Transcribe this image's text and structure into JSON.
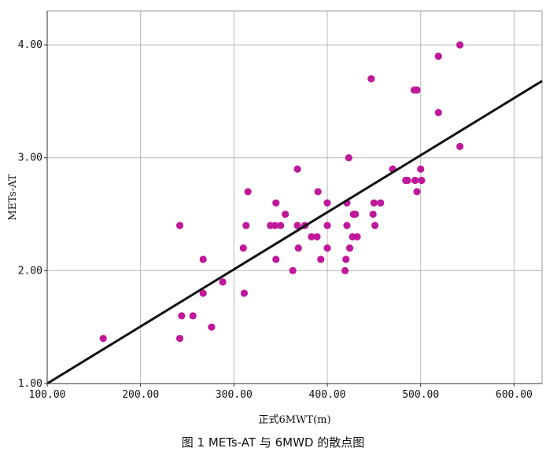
{
  "caption": "图 1   METs-AT 与 6MWD 的散点图",
  "chart_data": {
    "type": "scatter",
    "title": "",
    "xlabel": "正式6MWT(m)",
    "ylabel": "METs-AT",
    "xlim": [
      100,
      630
    ],
    "ylim": [
      1.0,
      4.3
    ],
    "x_ticks": [
      100,
      200,
      300,
      400,
      500,
      600
    ],
    "x_tick_labels": [
      "100.00",
      "200.00",
      "300.00",
      "400.00",
      "500.00",
      "600.00"
    ],
    "y_ticks": [
      1,
      2,
      3,
      4
    ],
    "y_tick_labels": [
      "1.00",
      "2.00",
      "3.00",
      "4.00"
    ],
    "grid": true,
    "marker_color": "#c0189a",
    "fit_line": {
      "color": "#111111",
      "x": [
        100,
        630
      ],
      "y": [
        1.0,
        3.68
      ]
    },
    "points": [
      {
        "x": 160,
        "y": 1.4
      },
      {
        "x": 242,
        "y": 2.4
      },
      {
        "x": 242,
        "y": 1.4
      },
      {
        "x": 244,
        "y": 1.6
      },
      {
        "x": 256,
        "y": 1.6
      },
      {
        "x": 267,
        "y": 2.1
      },
      {
        "x": 267,
        "y": 1.8
      },
      {
        "x": 276,
        "y": 1.5
      },
      {
        "x": 288,
        "y": 1.9
      },
      {
        "x": 310,
        "y": 2.2
      },
      {
        "x": 311,
        "y": 1.8
      },
      {
        "x": 313,
        "y": 2.4
      },
      {
        "x": 315,
        "y": 2.7
      },
      {
        "x": 339,
        "y": 2.4
      },
      {
        "x": 344,
        "y": 2.4
      },
      {
        "x": 345,
        "y": 2.6
      },
      {
        "x": 345,
        "y": 2.1
      },
      {
        "x": 350,
        "y": 2.4
      },
      {
        "x": 355,
        "y": 2.5
      },
      {
        "x": 363,
        "y": 2.0
      },
      {
        "x": 368,
        "y": 2.9
      },
      {
        "x": 368,
        "y": 2.4
      },
      {
        "x": 369,
        "y": 2.2
      },
      {
        "x": 376,
        "y": 2.4
      },
      {
        "x": 383,
        "y": 2.3
      },
      {
        "x": 389,
        "y": 2.3
      },
      {
        "x": 390,
        "y": 2.7
      },
      {
        "x": 393,
        "y": 2.1
      },
      {
        "x": 400,
        "y": 2.6
      },
      {
        "x": 400,
        "y": 2.4
      },
      {
        "x": 400,
        "y": 2.2
      },
      {
        "x": 419,
        "y": 2.0
      },
      {
        "x": 420,
        "y": 2.1
      },
      {
        "x": 421,
        "y": 2.6
      },
      {
        "x": 421,
        "y": 2.4
      },
      {
        "x": 423,
        "y": 3.0
      },
      {
        "x": 424,
        "y": 2.2
      },
      {
        "x": 427,
        "y": 2.3
      },
      {
        "x": 428,
        "y": 2.5
      },
      {
        "x": 430,
        "y": 2.5
      },
      {
        "x": 432,
        "y": 2.3
      },
      {
        "x": 447,
        "y": 3.7
      },
      {
        "x": 449,
        "y": 2.5
      },
      {
        "x": 450,
        "y": 2.6
      },
      {
        "x": 451,
        "y": 2.4
      },
      {
        "x": 457,
        "y": 2.6
      },
      {
        "x": 470,
        "y": 2.9
      },
      {
        "x": 484,
        "y": 2.8
      },
      {
        "x": 486,
        "y": 2.8
      },
      {
        "x": 493,
        "y": 3.6
      },
      {
        "x": 494,
        "y": 2.8
      },
      {
        "x": 496,
        "y": 3.6
      },
      {
        "x": 496,
        "y": 2.7
      },
      {
        "x": 500,
        "y": 2.9
      },
      {
        "x": 501,
        "y": 2.8
      },
      {
        "x": 519,
        "y": 3.9
      },
      {
        "x": 519,
        "y": 3.4
      },
      {
        "x": 542,
        "y": 4.0
      },
      {
        "x": 542,
        "y": 3.1
      }
    ]
  }
}
